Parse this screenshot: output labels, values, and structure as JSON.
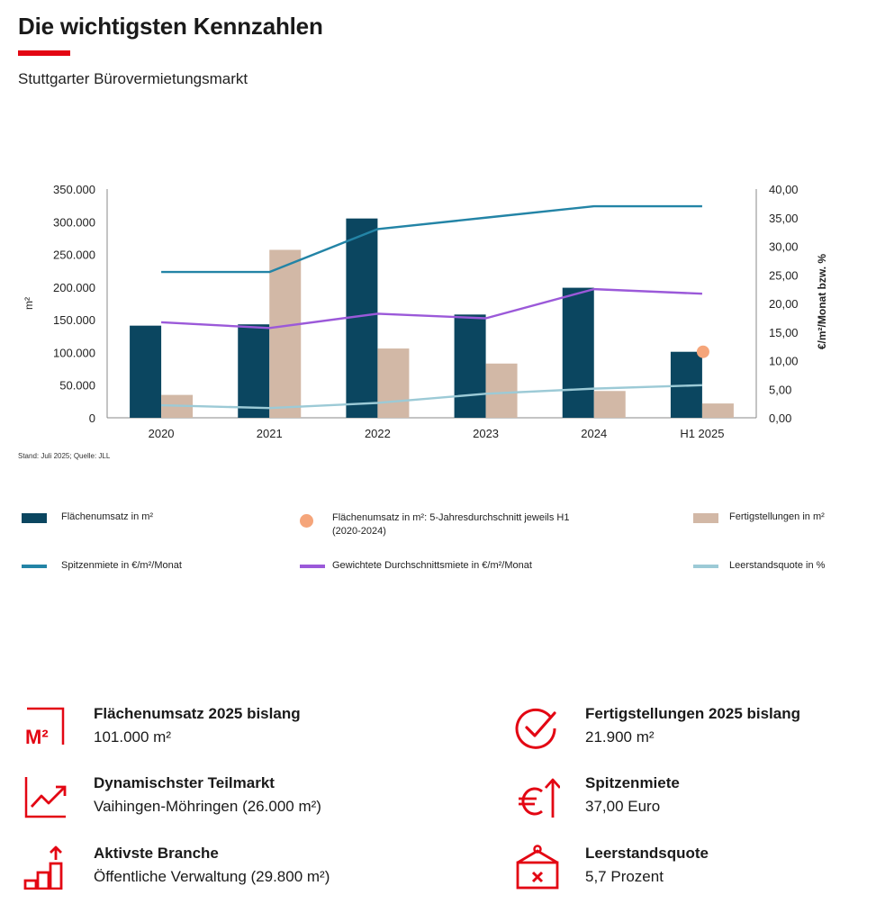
{
  "header": {
    "title": "Die wichtigsten Kennzahlen",
    "subtitle": "Stuttgarter Bürovermietungsmarkt"
  },
  "colors": {
    "accent": "#e30613",
    "umsatz": "#0b4660",
    "fertig": "#d2b8a6",
    "spitzen": "#2384a6",
    "durchschnitt": "#9b59d9",
    "leerstand": "#9ccad6",
    "average_dot": "#f5a57a"
  },
  "chart_data": {
    "type": "bar",
    "categories": [
      "2020",
      "2021",
      "2022",
      "2023",
      "2024",
      "H1 2025"
    ],
    "left_axis": {
      "label": "m²",
      "range": [
        0,
        350000
      ],
      "ticks": [
        "0",
        "50.000",
        "100.000",
        "150.000",
        "200.000",
        "250.000",
        "300.000",
        "350.000"
      ]
    },
    "right_axis": {
      "label": "€/m²/Monat bzw. %",
      "range": [
        0,
        40
      ],
      "ticks": [
        "0,00",
        "5,00",
        "10,00",
        "15,00",
        "20,00",
        "25,00",
        "30,00",
        "35,00",
        "40,00"
      ]
    },
    "series": [
      {
        "name": "Flächenumsatz in m²",
        "type": "bar",
        "axis": "left",
        "values": [
          141000,
          143000,
          305000,
          158000,
          199000,
          101000
        ]
      },
      {
        "name": "Fertigstellungen in m²",
        "type": "bar",
        "axis": "left",
        "values": [
          35000,
          257000,
          106000,
          83000,
          41000,
          21900
        ]
      },
      {
        "name": "Spitzenmiete in €/m²/Monat",
        "type": "line",
        "axis": "right",
        "values": [
          25.5,
          25.5,
          33.0,
          35.0,
          37.0,
          37.0
        ]
      },
      {
        "name": "Gewichtete Durchschnittsmiete in €/m²/Monat",
        "type": "line",
        "axis": "right",
        "values": [
          16.7,
          15.7,
          18.2,
          17.4,
          22.5,
          21.7
        ]
      },
      {
        "name": "Leerstandsquote in %",
        "type": "line",
        "axis": "right",
        "values": [
          2.2,
          1.7,
          2.6,
          4.2,
          5.1,
          5.7
        ]
      },
      {
        "name": "Flächenumsatz in m²: 5-Jahresdurchschnitt jeweils H1 (2020-2024)",
        "type": "point",
        "axis": "left",
        "category": "H1 2025",
        "value": 101000
      }
    ],
    "grid": false,
    "legend_position": "bottom",
    "source": "Stand: Juli 2025; Quelle: JLL"
  },
  "legend": {
    "umsatz": "Flächenumsatz  in m²",
    "average": "Flächenumsatz  in m²: 5-Jahresdurchschnitt jeweils H1 (2020-2024)",
    "fertig": "Fertigstellungen  in m²",
    "spitzen": "Spitzenmiete  in €/m²/Monat",
    "durchschnitt": "Gewichtete Durchschnittsmiete  in €/m²/Monat",
    "leerstand": "Leerstandsquote  in %"
  },
  "kpis": [
    {
      "icon": "m2-icon",
      "label": "Flächenumsatz 2025 bislang",
      "value": "101.000 m²"
    },
    {
      "icon": "checkmark-icon",
      "label": "Fertigstellungen 2025 bislang",
      "value": "21.900 m²"
    },
    {
      "icon": "trend-up-icon",
      "label": "Dynamischster Teilmarkt",
      "value": "Vaihingen-Möhringen (26.000 m²)"
    },
    {
      "icon": "euro-up-icon",
      "label": "Spitzenmiete",
      "value": "37,00 Euro"
    },
    {
      "icon": "bar-steps-icon",
      "label": "Aktivste Branche",
      "value": "Öffentliche Verwaltung (29.800 m²)"
    },
    {
      "icon": "vacancy-sign-icon",
      "label": "Leerstandsquote",
      "value": "5,7 Prozent"
    }
  ]
}
